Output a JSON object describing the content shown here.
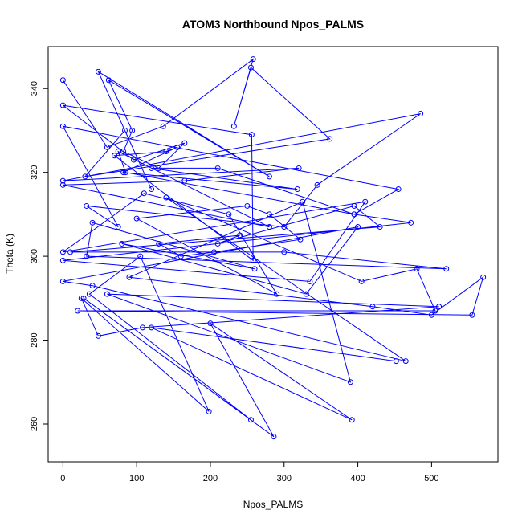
{
  "chart_data": {
    "type": "scatter",
    "title": "ATOM3 Northbound Npos_PALMS",
    "xlabel": "Npos_PALMS",
    "ylabel": "Theta (K)",
    "xlim": [
      -20,
      590
    ],
    "ylim": [
      251,
      350
    ],
    "xticks": [
      0,
      100,
      200,
      300,
      400,
      500
    ],
    "yticks": [
      260,
      280,
      300,
      320,
      340
    ],
    "grid": false,
    "legend": "none",
    "connected": true,
    "colors": {
      "series": "#0000ff",
      "axes": "#000000"
    },
    "x": [
      0,
      60,
      136,
      258,
      232,
      255,
      362,
      30,
      84,
      120,
      48,
      280,
      62,
      94,
      82,
      130,
      165,
      96,
      0,
      256,
      258,
      70,
      140,
      155,
      82,
      318,
      120,
      210,
      395,
      455,
      0,
      75,
      32,
      300,
      345,
      485,
      0,
      320,
      165,
      0,
      280,
      75,
      85,
      395,
      472,
      0,
      335,
      410,
      0,
      110,
      225,
      290,
      100,
      250,
      280,
      322,
      205,
      160,
      130,
      240,
      210,
      395,
      430,
      10,
      300,
      520,
      32,
      40,
      260,
      80,
      330,
      400,
      0,
      40,
      465,
      140,
      405,
      480,
      505,
      20,
      555,
      570,
      500,
      420,
      90,
      325,
      390,
      60,
      510,
      108,
      48,
      25,
      198,
      105,
      36,
      255,
      28,
      286,
      200,
      392,
      120,
      452
    ],
    "y": [
      342,
      326,
      331,
      347,
      331,
      345,
      328,
      319,
      330,
      316,
      344,
      319,
      342,
      330,
      325,
      321,
      327,
      323,
      336,
      329,
      299,
      324,
      325,
      326,
      320,
      316,
      321,
      321,
      310,
      316,
      331,
      307,
      312,
      307,
      317,
      334,
      318,
      321,
      318,
      317,
      307,
      325,
      320,
      310,
      308,
      299,
      294,
      313,
      301,
      315,
      310,
      291,
      309,
      312,
      310,
      304,
      301,
      300,
      303,
      305,
      303,
      312,
      307,
      301,
      301,
      297,
      300,
      308,
      297,
      303,
      291,
      307,
      294,
      293,
      275,
      314,
      294,
      297,
      287,
      287,
      286,
      295,
      286,
      288,
      295,
      313,
      270,
      291,
      288,
      283,
      281,
      290,
      263,
      300,
      291,
      261,
      290,
      257,
      284,
      261,
      283,
      275
    ]
  }
}
